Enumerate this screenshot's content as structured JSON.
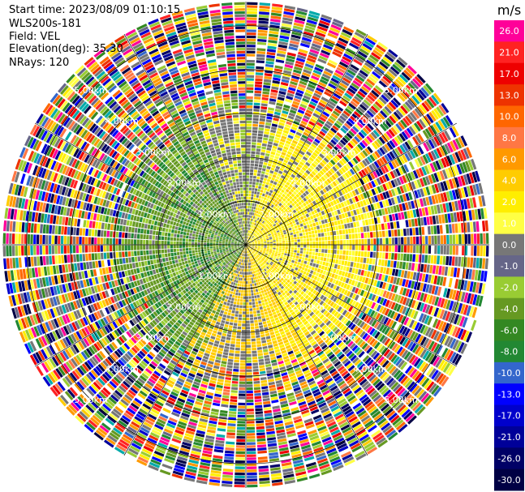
{
  "info": {
    "start_time": "Start time: 2023/08/09 01:10:15",
    "instrument": "WLS200s-181",
    "field": "Field: VEL",
    "elevation": "Elevation(deg): 35.30",
    "nrays": "NRays: 120"
  },
  "chart_data": {
    "type": "heatmap",
    "projection": "polar-ppi",
    "n_rays": 120,
    "range_rings_km": [
      1.0,
      2.0,
      3.0,
      4.0,
      5.0
    ],
    "range_ring_labels": [
      "1.00km",
      "2.00km",
      "3.00km",
      "4.00km",
      "5.00km"
    ],
    "colorbar": {
      "unit": "m/s",
      "ticks": [
        "26.0",
        "21.0",
        "17.0",
        "13.0",
        "10.0",
        "8.0",
        "6.0",
        "4.0",
        "2.0",
        "1.0",
        "0.0",
        "-1.0",
        "-2.0",
        "-4.0",
        "-6.0",
        "-8.0",
        "-10.0",
        "-13.0",
        "-17.0",
        "-21.0",
        "-26.0",
        "-30.0"
      ],
      "colors": [
        "#ff0099",
        "#ff2222",
        "#ee0000",
        "#ee3300",
        "#ff6600",
        "#ff7744",
        "#ff9900",
        "#ffcc00",
        "#ffee00",
        "#ffff44",
        "#777777",
        "#666688",
        "#99cc33",
        "#669922",
        "#338822",
        "#228833",
        "#3366cc",
        "#0000ff",
        "#0000cc",
        "#000099",
        "#000066",
        "#000044"
      ]
    }
  }
}
